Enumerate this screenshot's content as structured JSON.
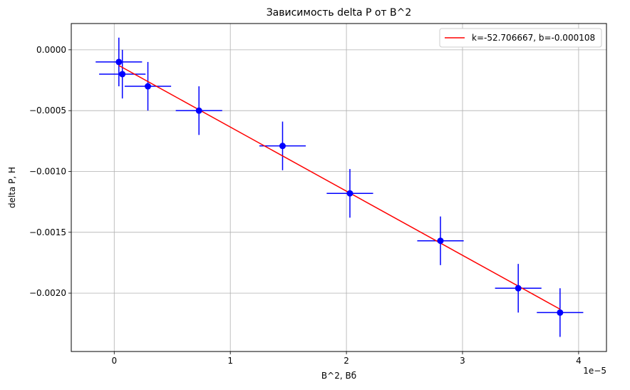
{
  "chart_data": {
    "type": "scatter",
    "title": "Зависимость delta P от B^2",
    "xlabel": "B^2, Вб",
    "ylabel": "delta P, Н",
    "x_offset_label": "1e−5",
    "xlim": [
      -3.7e-06,
      4.24e-05
    ],
    "ylim": [
      -0.00248,
      0.000216
    ],
    "xticks": [
      0,
      1e-05,
      2e-05,
      3e-05,
      4e-05
    ],
    "xtick_labels": [
      "0",
      "1",
      "2",
      "3",
      "4"
    ],
    "yticks": [
      0,
      -0.0005,
      -0.001,
      -0.0015,
      -0.002
    ],
    "ytick_labels": [
      "0.0000",
      "−0.0005",
      "−0.0010",
      "−0.0015",
      "−0.0020"
    ],
    "grid": true,
    "legend_position": "top-right",
    "series": [
      {
        "kind": "errorbar",
        "color": "#0000ff",
        "x": [
          4e-07,
          7e-07,
          2.9e-06,
          7.3e-06,
          1.45e-05,
          2.03e-05,
          2.81e-05,
          3.48e-05,
          3.84e-05
        ],
        "y": [
          -0.0001,
          -0.0002,
          -0.0003,
          -0.0005,
          -0.00079,
          -0.00118,
          -0.00157,
          -0.00196,
          -0.00216
        ],
        "xerr": 2e-06,
        "yerr": 0.0002
      },
      {
        "kind": "line",
        "name": "k=-52.706667, b=-0.000108",
        "color": "#ff0000",
        "x": [
          4e-07,
          3.84e-05
        ],
        "y": [
          -0.000129,
          -0.002132
        ]
      }
    ]
  }
}
